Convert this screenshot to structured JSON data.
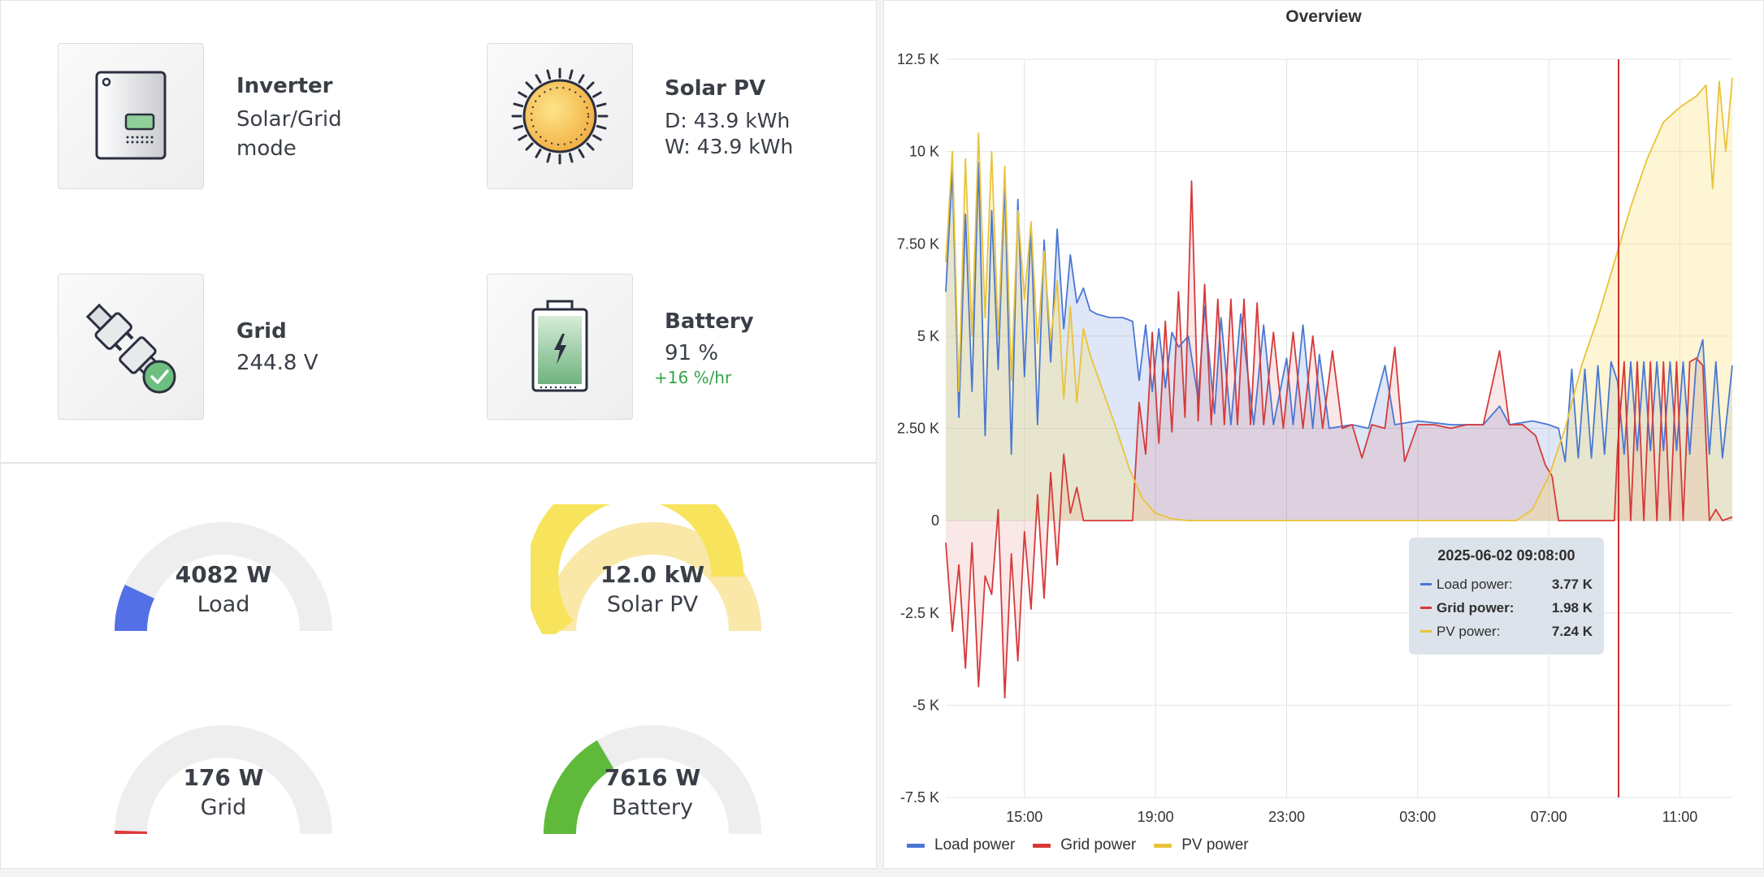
{
  "tiles": {
    "inverter": {
      "title": "Inverter",
      "line1": "Solar/Grid",
      "line2": "mode"
    },
    "solar": {
      "title": "Solar PV",
      "line1": "D: 43.9 kWh",
      "line2": "W: 43.9 kWh"
    },
    "grid": {
      "title": "Grid",
      "line1": "244.8 V"
    },
    "battery": {
      "title": "Battery",
      "line1": "91 %",
      "sub": "+16 %/hr"
    }
  },
  "gauges": [
    {
      "name": "load",
      "value": "4082 W",
      "label": "Load",
      "fraction": 0.14,
      "color": "#5470e6"
    },
    {
      "name": "solar",
      "value": "12.0 kW",
      "label": "Solar PV",
      "fraction": 0.8,
      "color": "#f8e45c",
      "track_color": "#f9e8a8"
    },
    {
      "name": "grid",
      "value": "176 W",
      "label": "Grid",
      "fraction": 0.01,
      "color": "#e03b3b"
    },
    {
      "name": "battery",
      "value": "7616 W",
      "label": "Battery",
      "fraction": 0.33,
      "color": "#5fba3c"
    }
  ],
  "chart_data": {
    "type": "line",
    "title": "Overview",
    "y_ticks": [
      "12.5 K",
      "10 K",
      "7.50 K",
      "5 K",
      "2.50 K",
      "0",
      "-2.5 K",
      "-5 K",
      "-7.5 K"
    ],
    "y_tick_values": [
      12500,
      10000,
      7500,
      5000,
      2500,
      0,
      -2500,
      -5000,
      -7500
    ],
    "ylim": [
      -7500,
      12500
    ],
    "x_ticks": [
      "15:00",
      "19:00",
      "23:00",
      "03:00",
      "07:00",
      "11:00"
    ],
    "x_tick_hours": [
      15,
      19,
      23,
      27,
      31,
      35
    ],
    "xlim_hours": [
      12.6,
      36.6
    ],
    "grid": true,
    "legend": "bottom-left",
    "cursor_hour": 33.13,
    "series": [
      {
        "name": "Load power",
        "color": "#4a77d4",
        "fill": "rgba(74,119,212,0.18)",
        "points": [
          [
            12.6,
            6200
          ],
          [
            12.8,
            9500
          ],
          [
            13.0,
            2800
          ],
          [
            13.2,
            8300
          ],
          [
            13.4,
            3500
          ],
          [
            13.6,
            9700
          ],
          [
            13.8,
            2300
          ],
          [
            14.0,
            8400
          ],
          [
            14.2,
            4100
          ],
          [
            14.4,
            9200
          ],
          [
            14.6,
            1800
          ],
          [
            14.8,
            8700
          ],
          [
            15.0,
            3900
          ],
          [
            15.2,
            8000
          ],
          [
            15.4,
            2600
          ],
          [
            15.6,
            7600
          ],
          [
            15.8,
            4300
          ],
          [
            16.0,
            7900
          ],
          [
            16.2,
            5200
          ],
          [
            16.4,
            7200
          ],
          [
            16.6,
            5900
          ],
          [
            16.8,
            6300
          ],
          [
            17.0,
            5700
          ],
          [
            17.2,
            5600
          ],
          [
            17.6,
            5500
          ],
          [
            18.0,
            5500
          ],
          [
            18.3,
            5400
          ],
          [
            18.5,
            3800
          ],
          [
            18.7,
            5300
          ],
          [
            18.9,
            3500
          ],
          [
            19.1,
            5200
          ],
          [
            19.3,
            3600
          ],
          [
            19.5,
            5100
          ],
          [
            19.7,
            4700
          ],
          [
            20.0,
            5000
          ],
          [
            20.3,
            3300
          ],
          [
            20.5,
            5800
          ],
          [
            20.8,
            2900
          ],
          [
            21.0,
            5500
          ],
          [
            21.3,
            2600
          ],
          [
            21.6,
            5600
          ],
          [
            22.0,
            2600
          ],
          [
            22.3,
            5300
          ],
          [
            22.6,
            2600
          ],
          [
            23.0,
            4400
          ],
          [
            23.2,
            2600
          ],
          [
            23.5,
            5300
          ],
          [
            23.8,
            2500
          ],
          [
            24.0,
            4500
          ],
          [
            24.3,
            2500
          ],
          [
            25.0,
            2600
          ],
          [
            25.5,
            2500
          ],
          [
            26.0,
            4200
          ],
          [
            26.3,
            2600
          ],
          [
            27.0,
            2700
          ],
          [
            28.0,
            2600
          ],
          [
            29.0,
            2600
          ],
          [
            29.5,
            3100
          ],
          [
            29.8,
            2600
          ],
          [
            30.5,
            2700
          ],
          [
            31.0,
            2600
          ],
          [
            31.3,
            2500
          ],
          [
            31.5,
            1600
          ],
          [
            31.7,
            4100
          ],
          [
            31.9,
            1700
          ],
          [
            32.1,
            4100
          ],
          [
            32.3,
            1700
          ],
          [
            32.5,
            4200
          ],
          [
            32.7,
            1800
          ],
          [
            32.9,
            4300
          ],
          [
            33.1,
            3770
          ],
          [
            33.3,
            1800
          ],
          [
            33.5,
            4300
          ],
          [
            33.7,
            1900
          ],
          [
            33.9,
            4300
          ],
          [
            34.1,
            1900
          ],
          [
            34.3,
            4300
          ],
          [
            34.5,
            1900
          ],
          [
            34.7,
            4300
          ],
          [
            34.9,
            1900
          ],
          [
            35.1,
            4300
          ],
          [
            35.3,
            1800
          ],
          [
            35.5,
            4300
          ],
          [
            35.7,
            4900
          ],
          [
            35.9,
            1800
          ],
          [
            36.1,
            4300
          ],
          [
            36.3,
            1700
          ],
          [
            36.6,
            4200
          ]
        ]
      },
      {
        "name": "Grid power",
        "color": "#d63a3a",
        "fill": "rgba(214,58,58,0.12)",
        "points": [
          [
            12.6,
            -600
          ],
          [
            12.8,
            -3000
          ],
          [
            13.0,
            -1200
          ],
          [
            13.2,
            -4000
          ],
          [
            13.4,
            -600
          ],
          [
            13.6,
            -4500
          ],
          [
            13.8,
            -1500
          ],
          [
            14.0,
            -2000
          ],
          [
            14.2,
            300
          ],
          [
            14.4,
            -4800
          ],
          [
            14.6,
            -900
          ],
          [
            14.8,
            -3800
          ],
          [
            15.0,
            -300
          ],
          [
            15.2,
            -2400
          ],
          [
            15.4,
            700
          ],
          [
            15.6,
            -2100
          ],
          [
            15.8,
            1300
          ],
          [
            16.0,
            -1200
          ],
          [
            16.2,
            1800
          ],
          [
            16.4,
            200
          ],
          [
            16.6,
            900
          ],
          [
            16.8,
            0
          ],
          [
            17.0,
            0
          ],
          [
            17.5,
            0
          ],
          [
            18.0,
            0
          ],
          [
            18.3,
            0
          ],
          [
            18.5,
            3200
          ],
          [
            18.7,
            1800
          ],
          [
            18.9,
            5100
          ],
          [
            19.1,
            2100
          ],
          [
            19.3,
            5400
          ],
          [
            19.5,
            2400
          ],
          [
            19.7,
            6200
          ],
          [
            19.9,
            2800
          ],
          [
            20.1,
            9200
          ],
          [
            20.3,
            2700
          ],
          [
            20.5,
            6400
          ],
          [
            20.7,
            2600
          ],
          [
            20.9,
            6000
          ],
          [
            21.1,
            2600
          ],
          [
            21.3,
            6000
          ],
          [
            21.5,
            2600
          ],
          [
            21.7,
            6000
          ],
          [
            21.9,
            2600
          ],
          [
            22.1,
            5900
          ],
          [
            22.3,
            2600
          ],
          [
            22.6,
            5100
          ],
          [
            22.9,
            2500
          ],
          [
            23.2,
            5100
          ],
          [
            23.5,
            2500
          ],
          [
            23.8,
            5000
          ],
          [
            24.1,
            2500
          ],
          [
            24.4,
            4600
          ],
          [
            24.7,
            2500
          ],
          [
            25.0,
            2600
          ],
          [
            25.3,
            1700
          ],
          [
            25.6,
            2600
          ],
          [
            26.0,
            2500
          ],
          [
            26.3,
            4700
          ],
          [
            26.6,
            1600
          ],
          [
            27.0,
            2600
          ],
          [
            27.5,
            2600
          ],
          [
            28.0,
            2500
          ],
          [
            28.5,
            2600
          ],
          [
            29.0,
            2600
          ],
          [
            29.5,
            4600
          ],
          [
            29.8,
            2600
          ],
          [
            30.2,
            2600
          ],
          [
            30.6,
            2300
          ],
          [
            30.9,
            1500
          ],
          [
            31.1,
            1200
          ],
          [
            31.3,
            0
          ],
          [
            31.6,
            0
          ],
          [
            31.9,
            0
          ],
          [
            32.1,
            0
          ],
          [
            32.4,
            0
          ],
          [
            32.7,
            0
          ],
          [
            33.0,
            0
          ],
          [
            33.1,
            1980
          ],
          [
            33.3,
            4300
          ],
          [
            33.5,
            0
          ],
          [
            33.7,
            4300
          ],
          [
            33.9,
            0
          ],
          [
            34.1,
            4300
          ],
          [
            34.3,
            0
          ],
          [
            34.5,
            4300
          ],
          [
            34.7,
            0
          ],
          [
            34.9,
            4300
          ],
          [
            35.1,
            0
          ],
          [
            35.3,
            4300
          ],
          [
            35.5,
            4400
          ],
          [
            35.7,
            4200
          ],
          [
            35.9,
            0
          ],
          [
            36.1,
            300
          ],
          [
            36.3,
            0
          ],
          [
            36.6,
            100
          ]
        ]
      },
      {
        "name": "PV power",
        "color": "#e9c33a",
        "fill": "rgba(249,226,130,0.35)",
        "points": [
          [
            12.6,
            7000
          ],
          [
            12.8,
            10000
          ],
          [
            13.0,
            3500
          ],
          [
            13.2,
            9800
          ],
          [
            13.4,
            5000
          ],
          [
            13.6,
            10500
          ],
          [
            13.8,
            5500
          ],
          [
            14.0,
            10000
          ],
          [
            14.2,
            5000
          ],
          [
            14.4,
            9600
          ],
          [
            14.6,
            3800
          ],
          [
            14.8,
            8400
          ],
          [
            15.0,
            6000
          ],
          [
            15.2,
            8100
          ],
          [
            15.4,
            4800
          ],
          [
            15.6,
            7300
          ],
          [
            15.8,
            4900
          ],
          [
            16.0,
            6500
          ],
          [
            16.2,
            3300
          ],
          [
            16.4,
            5800
          ],
          [
            16.6,
            3200
          ],
          [
            16.8,
            5200
          ],
          [
            17.0,
            4500
          ],
          [
            17.4,
            3500
          ],
          [
            17.8,
            2500
          ],
          [
            18.2,
            1400
          ],
          [
            18.6,
            600
          ],
          [
            19.0,
            200
          ],
          [
            19.5,
            50
          ],
          [
            20.0,
            0
          ],
          [
            25.0,
            0
          ],
          [
            29.0,
            0
          ],
          [
            30.0,
            0
          ],
          [
            30.5,
            300
          ],
          [
            31.0,
            1200
          ],
          [
            31.5,
            2500
          ],
          [
            32.0,
            4200
          ],
          [
            32.5,
            5500
          ],
          [
            33.0,
            7000
          ],
          [
            33.5,
            8500
          ],
          [
            34.0,
            9800
          ],
          [
            34.5,
            10800
          ],
          [
            35.0,
            11200
          ],
          [
            35.5,
            11500
          ],
          [
            35.8,
            11800
          ],
          [
            36.0,
            9000
          ],
          [
            36.2,
            11900
          ],
          [
            36.4,
            10000
          ],
          [
            36.6,
            12000
          ]
        ]
      }
    ],
    "tooltip": {
      "time": "2025-06-02 09:08:00",
      "rows": [
        {
          "name": "Load power:",
          "value": "3.77 K",
          "color": "#4a77d4"
        },
        {
          "name": "Grid power:",
          "value": "1.98 K",
          "color": "#d63a3a"
        },
        {
          "name": "PV power:",
          "value": "7.24 K",
          "color": "#e9c33a"
        }
      ]
    }
  }
}
